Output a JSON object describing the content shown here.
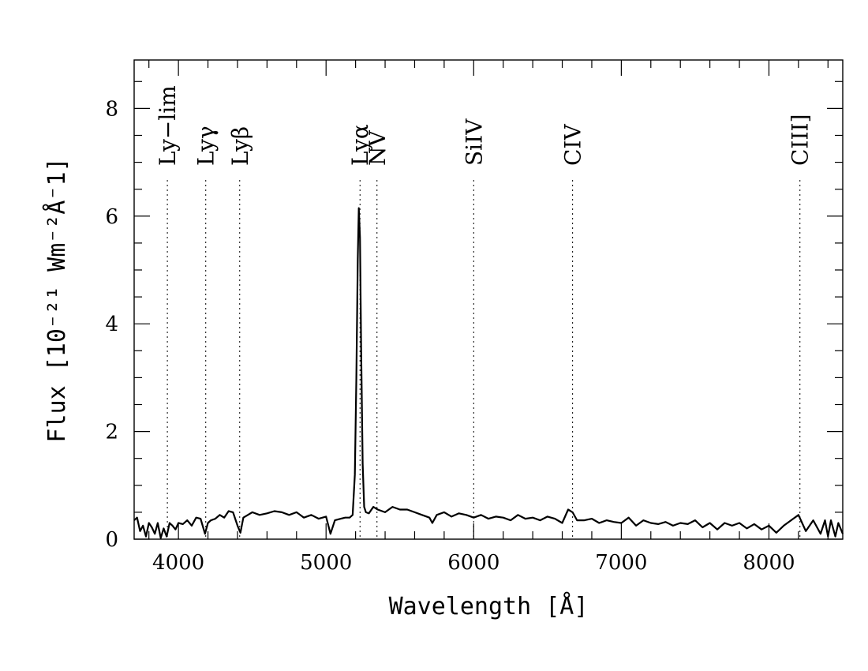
{
  "chart_data": {
    "type": "line",
    "title": "",
    "xlabel": "Wavelength [Å]",
    "ylabel": "Flux [10⁻²¹ Wm⁻²Å⁻1]",
    "xlim": [
      3700,
      8500
    ],
    "ylim": [
      0,
      8.9
    ],
    "x_ticks": [
      4000,
      5000,
      6000,
      7000,
      8000
    ],
    "y_ticks": [
      0,
      2,
      4,
      6,
      8
    ],
    "grid": false,
    "legend": "none",
    "lines": [
      {
        "label": "Ly−lim",
        "x": 3925
      },
      {
        "label": "Lyγ",
        "x": 4185
      },
      {
        "label": "Lyβ",
        "x": 4415
      },
      {
        "label": "Lyα",
        "x": 5230
      },
      {
        "label": "NV",
        "x": 5345
      },
      {
        "label": "SiIV",
        "x": 6000
      },
      {
        "label": "CIV",
        "x": 6670
      },
      {
        "label": "CIII]",
        "x": 8210
      }
    ],
    "series": [
      {
        "x": [
          3700,
          3720,
          3740,
          3760,
          3780,
          3800,
          3820,
          3840,
          3860,
          3880,
          3900,
          3920,
          3940,
          3960,
          3980,
          4000,
          4030,
          4060,
          4090,
          4120,
          4150,
          4180,
          4200,
          4220,
          4250,
          4280,
          4310,
          4340,
          4370,
          4400,
          4420,
          4440,
          4470,
          4500,
          4550,
          4600,
          4650,
          4700,
          4750,
          4800,
          4850,
          4900,
          4950,
          5000,
          5030,
          5060,
          5100,
          5130,
          5160,
          5180,
          5195,
          5205,
          5215,
          5222,
          5230,
          5238,
          5248,
          5258,
          5270,
          5290,
          5320,
          5350,
          5400,
          5450,
          5500,
          5550,
          5600,
          5650,
          5700,
          5720,
          5750,
          5800,
          5850,
          5900,
          5950,
          6000,
          6050,
          6100,
          6150,
          6200,
          6250,
          6300,
          6350,
          6400,
          6450,
          6500,
          6550,
          6600,
          6640,
          6670,
          6700,
          6750,
          6800,
          6850,
          6900,
          6950,
          7000,
          7050,
          7100,
          7150,
          7200,
          7250,
          7300,
          7350,
          7400,
          7450,
          7500,
          7550,
          7600,
          7650,
          7700,
          7750,
          7800,
          7850,
          7900,
          7950,
          8000,
          8050,
          8100,
          8150,
          8200,
          8250,
          8300,
          8350,
          8380,
          8400,
          8420,
          8450,
          8470,
          8500
        ],
        "y": [
          0.35,
          0.4,
          0.15,
          0.25,
          0.05,
          0.3,
          0.22,
          0.1,
          0.3,
          0.02,
          0.2,
          0.05,
          0.3,
          0.25,
          0.18,
          0.3,
          0.28,
          0.35,
          0.25,
          0.4,
          0.38,
          0.1,
          0.3,
          0.35,
          0.38,
          0.45,
          0.4,
          0.52,
          0.5,
          0.25,
          0.12,
          0.4,
          0.45,
          0.5,
          0.45,
          0.48,
          0.52,
          0.5,
          0.45,
          0.5,
          0.4,
          0.45,
          0.38,
          0.42,
          0.1,
          0.35,
          0.38,
          0.4,
          0.4,
          0.45,
          1.2,
          3.0,
          5.2,
          6.15,
          5.6,
          3.5,
          1.4,
          0.6,
          0.5,
          0.48,
          0.6,
          0.55,
          0.5,
          0.6,
          0.55,
          0.55,
          0.5,
          0.45,
          0.4,
          0.3,
          0.45,
          0.5,
          0.42,
          0.48,
          0.45,
          0.4,
          0.45,
          0.38,
          0.42,
          0.4,
          0.35,
          0.45,
          0.38,
          0.4,
          0.35,
          0.42,
          0.38,
          0.3,
          0.55,
          0.5,
          0.35,
          0.35,
          0.38,
          0.3,
          0.35,
          0.32,
          0.3,
          0.4,
          0.25,
          0.35,
          0.3,
          0.28,
          0.32,
          0.25,
          0.3,
          0.28,
          0.35,
          0.22,
          0.3,
          0.18,
          0.3,
          0.25,
          0.3,
          0.2,
          0.28,
          0.18,
          0.25,
          0.12,
          0.25,
          0.35,
          0.45,
          0.15,
          0.35,
          0.1,
          0.35,
          0.05,
          0.35,
          0.05,
          0.3,
          0.1
        ]
      }
    ]
  }
}
